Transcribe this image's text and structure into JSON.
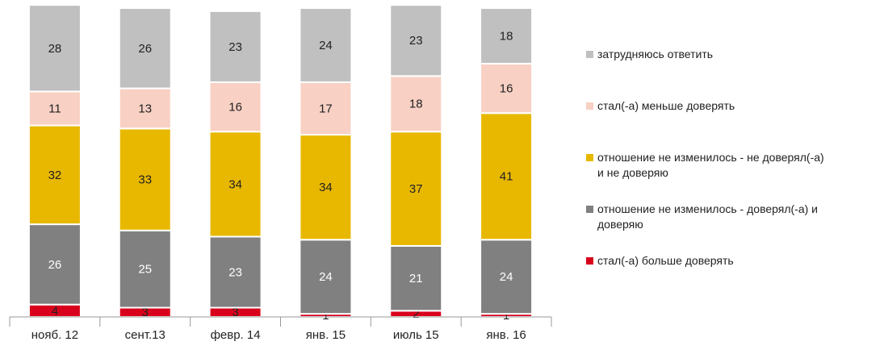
{
  "chart_data": {
    "type": "stacked-bar",
    "categories": [
      "нояб. 12",
      "сент.13",
      "февр. 14",
      "янв. 15",
      "июль 15",
      "янв. 16"
    ],
    "series": [
      {
        "name": "стал(-а) больше доверять",
        "color": "#d9001b",
        "values": [
          4,
          3,
          3,
          1,
          2,
          1
        ]
      },
      {
        "name": "отношение не изменилось - доверял(-а) и доверяю",
        "color": "#808080",
        "values": [
          26,
          25,
          23,
          24,
          21,
          24
        ]
      },
      {
        "name": "отношение не изменилось - не доверял(-а) и не доверяю",
        "color": "#e8b800",
        "values": [
          32,
          33,
          34,
          34,
          37,
          41
        ]
      },
      {
        "name": "стал(-а) меньше доверять",
        "color": "#f8d0c4",
        "values": [
          11,
          13,
          16,
          17,
          18,
          16
        ]
      },
      {
        "name": "затрудняюсь ответить",
        "color": "#c0c0c0",
        "values": [
          28,
          26,
          23,
          24,
          23,
          18
        ]
      }
    ],
    "legend": "right"
  }
}
